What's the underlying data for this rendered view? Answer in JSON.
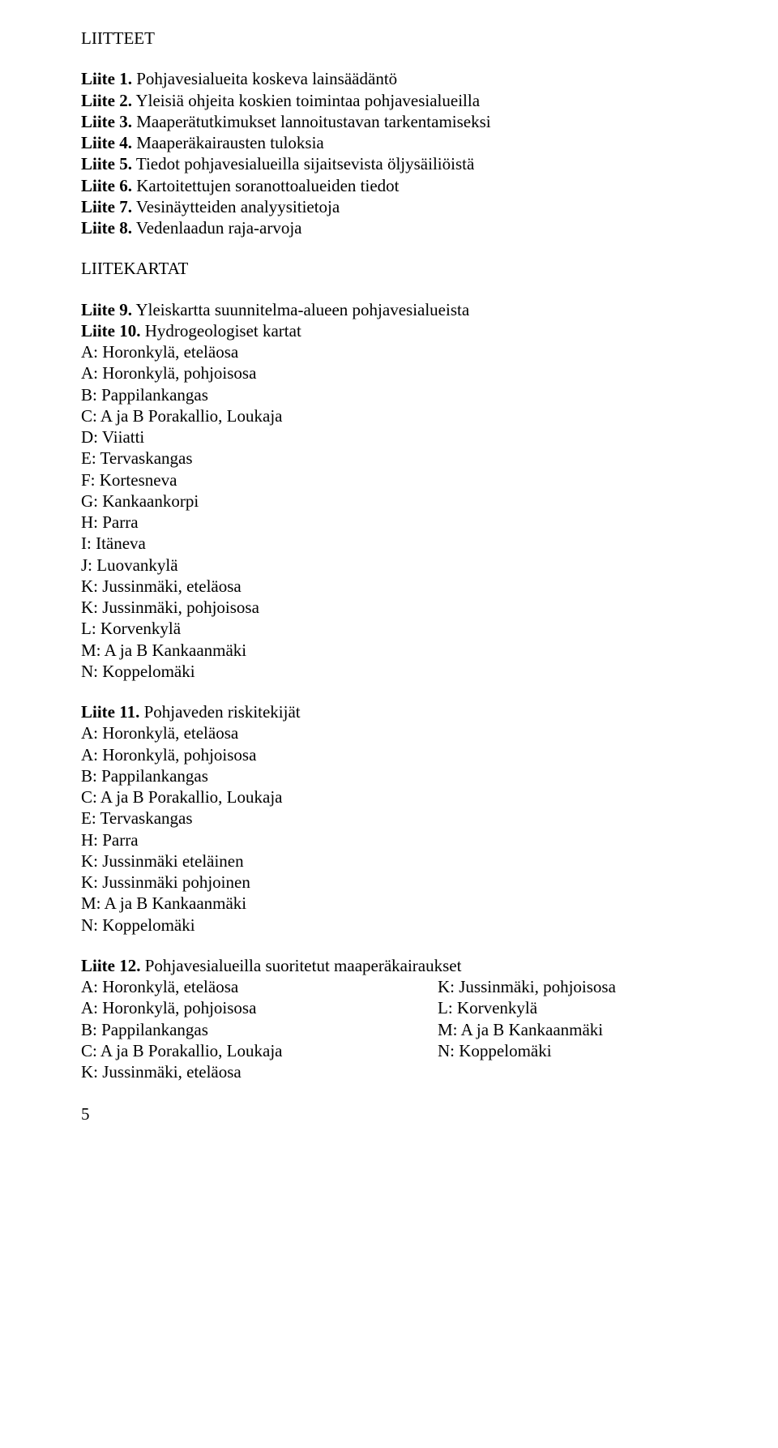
{
  "headings": {
    "liitteet": "LIITTEET",
    "liitekartat": "LIITEKARTAT"
  },
  "liitteet": [
    {
      "b": "Liite 1.",
      "t": " Pohjavesialueita koskeva lainsäädäntö"
    },
    {
      "b": "Liite 2.",
      "t": " Yleisiä ohjeita koskien toimintaa pohjavesialueilla"
    },
    {
      "b": "Liite 3.",
      "t": " Maaperätutkimukset lannoitustavan tarkentamiseksi"
    },
    {
      "b": "Liite 4.",
      "t": " Maaperäkairausten tuloksia"
    },
    {
      "b": "Liite 5.",
      "t": " Tiedot pohjavesialueilla sijaitsevista öljysäiliöistä"
    },
    {
      "b": "Liite 6.",
      "t": " Kartoitettujen soranottoalueiden tiedot"
    },
    {
      "b": "Liite 7.",
      "t": " Vesinäytteiden analyysitietoja"
    },
    {
      "b": "Liite 8.",
      "t": " Vedenlaadun raja-arvoja"
    }
  ],
  "liite9": {
    "b": "Liite 9.",
    "t": " Yleiskartta suunnitelma-alueen pohjavesialueista"
  },
  "liite10": {
    "b": "Liite 10.",
    "t": " Hydrogeologiset kartat"
  },
  "liite10_items": [
    "A: Horonkylä, eteläosa",
    "A: Horonkylä, pohjoisosa",
    "B: Pappilankangas",
    "C: A ja B Porakallio, Loukaja",
    "D: Viiatti",
    "E: Tervaskangas",
    "F: Kortesneva",
    "G: Kankaankorpi",
    "H: Parra",
    "I: Itäneva",
    "J: Luovankylä",
    "K: Jussinmäki, eteläosa",
    "K: Jussinmäki, pohjoisosa",
    "L: Korvenkylä",
    "M: A ja B Kankaanmäki",
    "N: Koppelomäki"
  ],
  "liite11": {
    "b": "Liite 11.",
    "t": " Pohjaveden riskitekijät"
  },
  "liite11_items": [
    "A: Horonkylä, eteläosa",
    "A: Horonkylä, pohjoisosa",
    "B: Pappilankangas",
    "C: A ja B Porakallio, Loukaja",
    "E: Tervaskangas",
    "H: Parra",
    "K: Jussinmäki eteläinen",
    "K: Jussinmäki pohjoinen",
    "M: A ja B Kankaanmäki",
    "N: Koppelomäki"
  ],
  "liite12": {
    "b": "Liite 12.",
    "t": " Pohjavesialueilla suoritetut maaperäkairaukset"
  },
  "liite12_left": [
    "A: Horonkylä, eteläosa",
    "A: Horonkylä, pohjoisosa",
    "B: Pappilankangas",
    "C: A ja B Porakallio, Loukaja",
    "K: Jussinmäki, eteläosa"
  ],
  "liite12_right": [
    "K: Jussinmäki, pohjoisosa",
    "L: Korvenkylä",
    "M: A ja B Kankaanmäki",
    "N: Koppelomäki"
  ],
  "page_number": "5"
}
